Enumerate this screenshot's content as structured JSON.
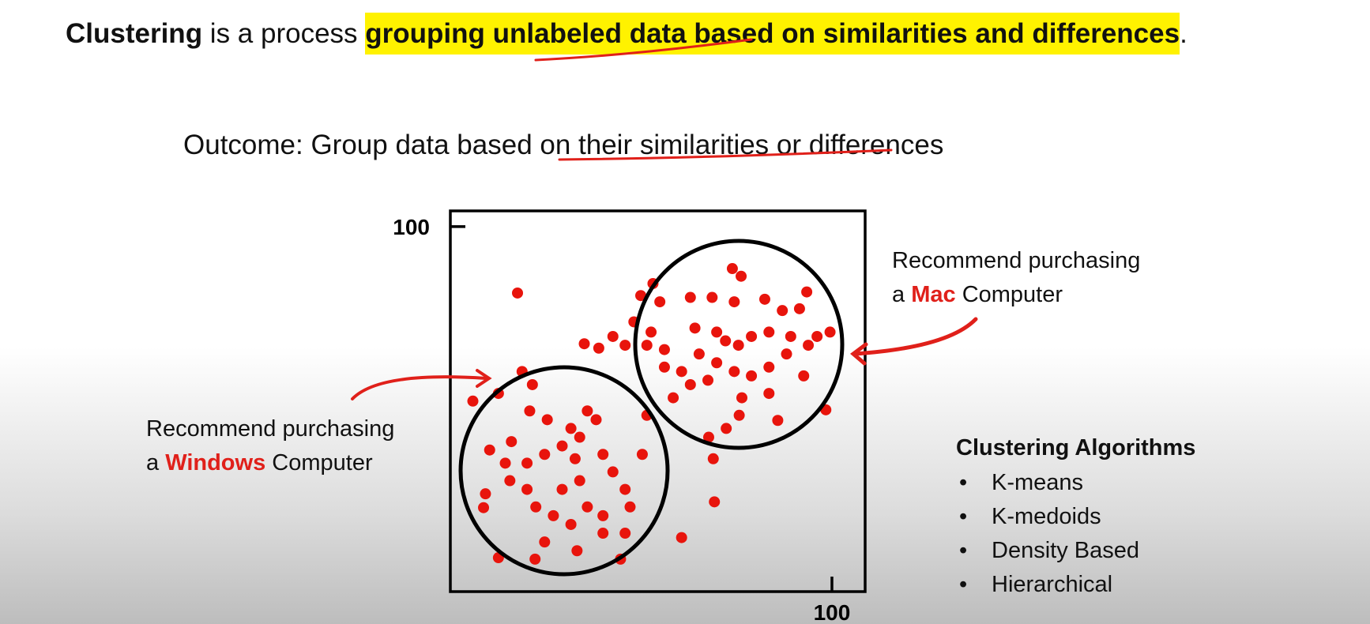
{
  "header": {
    "lead": "Clustering",
    "text": " is a process ",
    "highlight": "grouping unlabeled data based on similarities and differences",
    "end": "."
  },
  "outcome": "Outcome: Group data based on their similarities or differences",
  "annotations": [
    {
      "line1": "Recommend purchasing",
      "pre": "a",
      "brand": "Mac",
      "post": "Computer"
    },
    {
      "line1": "Recommend purchasing",
      "pre": "a",
      "brand": "Windows",
      "post": "Computer"
    }
  ],
  "algorithms": {
    "title": "Clustering Algorithms",
    "items": [
      "K-means",
      "K-medoids",
      "Density Based",
      "Hierarchical"
    ]
  },
  "chart_data": {
    "type": "scatter",
    "color": "#e8140c",
    "x": [
      17.6,
      18.8,
      5.9,
      12.6,
      21.5,
      9.2,
      8.7,
      12.6,
      22.2,
      33.2,
      44.6,
      51.5,
      50.3,
      60.6,
      69.2,
      31.6,
      33.9,
      29.3,
      24.7,
      20.1,
      15.6,
      14.4,
      20.8,
      25.4,
      35.9,
      38.2,
      40.0,
      42.6,
      45.8,
      47.1,
      40.0,
      35.9,
      31.6,
      27.0,
      22.4,
      20.1,
      29.3,
      33.9,
      24.7,
      40.0,
      45.8,
      16.0,
      10.3,
      32.7,
      73.9,
      76.2,
      53.1,
      49.9,
      54.9,
      62.9,
      68.6,
      74.4,
      82.4,
      93.4,
      87.0,
      91.5,
      48.1,
      35.1,
      38.9,
      42.6,
      45.8,
      52.6,
      56.1,
      64.1,
      69.8,
      72.1,
      75.5,
      78.9,
      83.5,
      89.2,
      96.1,
      99.5,
      93.8,
      88.1,
      83.5,
      78.9,
      74.4,
      69.8,
      65.2,
      60.6,
      58.4,
      62.9,
      67.5,
      76.4,
      83.5,
      85.8,
      98.4,
      92.6,
      75.7,
      72.3,
      67.7,
      68.9,
      51.5,
      56.1
    ],
    "y": [
      81.8,
      60.3,
      52.2,
      54.3,
      56.7,
      26.8,
      23.0,
      9.3,
      8.9,
      11.2,
      8.9,
      48.3,
      37.6,
      14.8,
      24.6,
      44.7,
      42.3,
      39.9,
      37.6,
      35.2,
      30.4,
      35.2,
      49.5,
      47.1,
      49.5,
      47.1,
      37.6,
      32.8,
      28.0,
      23.2,
      20.8,
      23.2,
      18.4,
      20.8,
      23.2,
      28.0,
      28.0,
      30.4,
      13.6,
      16.0,
      16.0,
      41.1,
      38.8,
      36.4,
      88.5,
      86.4,
      84.4,
      81.1,
      79.4,
      80.6,
      80.6,
      79.4,
      80.1,
      82.1,
      77.0,
      77.5,
      73.9,
      67.9,
      66.7,
      69.9,
      67.5,
      71.1,
      66.3,
      72.2,
      71.1,
      68.7,
      67.5,
      69.9,
      71.1,
      69.9,
      69.9,
      71.1,
      67.5,
      65.1,
      61.5,
      59.1,
      60.3,
      62.7,
      65.1,
      60.3,
      53.1,
      56.7,
      57.9,
      53.1,
      54.3,
      46.9,
      49.8,
      59.1,
      48.3,
      44.7,
      42.3,
      36.4,
      67.5,
      61.5
    ],
    "xlim": [
      0,
      108.7
    ],
    "ylim": [
      0,
      104.3
    ],
    "xticks": [
      100
    ],
    "yticks": [
      100
    ]
  }
}
